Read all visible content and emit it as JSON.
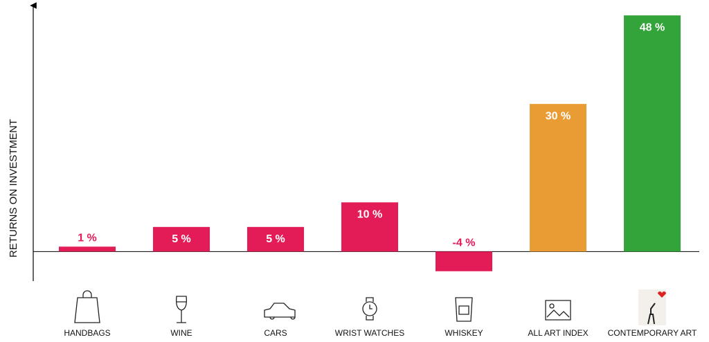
{
  "chart_data": {
    "type": "bar",
    "y_label": "RETURNS ON INVESTMENT",
    "categories": [
      "HANDBAGS",
      "WINE",
      "CARS",
      "WRIST WATCHES",
      "WHISKEY",
      "ALL ART INDEX",
      "CONTEMPORARY ART"
    ],
    "values": [
      1,
      5,
      5,
      10,
      -4,
      30,
      48
    ],
    "value_labels": [
      "1 %",
      "5 %",
      "5 %",
      "10 %",
      "-4 %",
      "30 %",
      "48 %"
    ],
    "colors": [
      "#e31b57",
      "#e31b57",
      "#e31b57",
      "#e31b57",
      "#e31b57",
      "#e89c33",
      "#32a43a"
    ],
    "ylim": [
      -6,
      50
    ]
  }
}
